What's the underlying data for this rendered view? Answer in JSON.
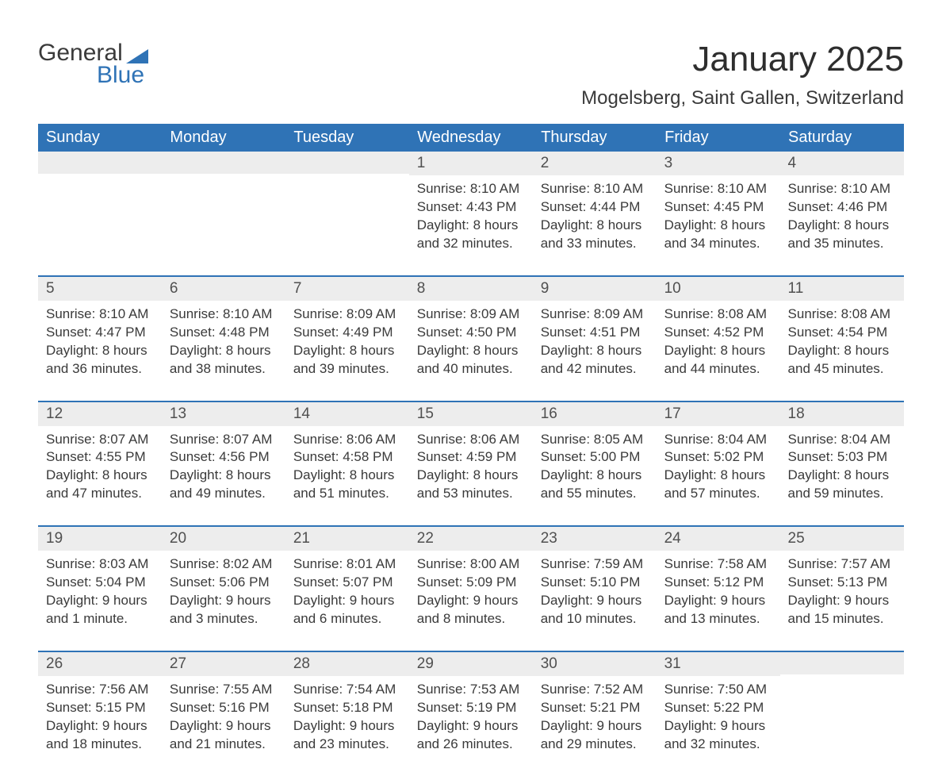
{
  "logo": {
    "word1": "General",
    "word2": "Blue"
  },
  "title": "January 2025",
  "location": "Mogelsberg, Saint Gallen, Switzerland",
  "colors": {
    "header_bg": "#2f73b6",
    "header_text": "#ffffff",
    "daynum_bg": "#ededed",
    "text": "#3a3a3a",
    "border": "#2f73b6",
    "page_bg": "#ffffff"
  },
  "fonts": {
    "family": "Arial, Helvetica, sans-serif",
    "title_size_pt": 33,
    "location_size_pt": 18,
    "header_size_pt": 15,
    "body_size_pt": 13
  },
  "weekdays": [
    "Sunday",
    "Monday",
    "Tuesday",
    "Wednesday",
    "Thursday",
    "Friday",
    "Saturday"
  ],
  "weeks": [
    [
      {
        "day": "",
        "sunrise": "",
        "sunset": "",
        "daylight": ""
      },
      {
        "day": "",
        "sunrise": "",
        "sunset": "",
        "daylight": ""
      },
      {
        "day": "",
        "sunrise": "",
        "sunset": "",
        "daylight": ""
      },
      {
        "day": "1",
        "sunrise": "Sunrise: 8:10 AM",
        "sunset": "Sunset: 4:43 PM",
        "daylight": "Daylight: 8 hours and 32 minutes."
      },
      {
        "day": "2",
        "sunrise": "Sunrise: 8:10 AM",
        "sunset": "Sunset: 4:44 PM",
        "daylight": "Daylight: 8 hours and 33 minutes."
      },
      {
        "day": "3",
        "sunrise": "Sunrise: 8:10 AM",
        "sunset": "Sunset: 4:45 PM",
        "daylight": "Daylight: 8 hours and 34 minutes."
      },
      {
        "day": "4",
        "sunrise": "Sunrise: 8:10 AM",
        "sunset": "Sunset: 4:46 PM",
        "daylight": "Daylight: 8 hours and 35 minutes."
      }
    ],
    [
      {
        "day": "5",
        "sunrise": "Sunrise: 8:10 AM",
        "sunset": "Sunset: 4:47 PM",
        "daylight": "Daylight: 8 hours and 36 minutes."
      },
      {
        "day": "6",
        "sunrise": "Sunrise: 8:10 AM",
        "sunset": "Sunset: 4:48 PM",
        "daylight": "Daylight: 8 hours and 38 minutes."
      },
      {
        "day": "7",
        "sunrise": "Sunrise: 8:09 AM",
        "sunset": "Sunset: 4:49 PM",
        "daylight": "Daylight: 8 hours and 39 minutes."
      },
      {
        "day": "8",
        "sunrise": "Sunrise: 8:09 AM",
        "sunset": "Sunset: 4:50 PM",
        "daylight": "Daylight: 8 hours and 40 minutes."
      },
      {
        "day": "9",
        "sunrise": "Sunrise: 8:09 AM",
        "sunset": "Sunset: 4:51 PM",
        "daylight": "Daylight: 8 hours and 42 minutes."
      },
      {
        "day": "10",
        "sunrise": "Sunrise: 8:08 AM",
        "sunset": "Sunset: 4:52 PM",
        "daylight": "Daylight: 8 hours and 44 minutes."
      },
      {
        "day": "11",
        "sunrise": "Sunrise: 8:08 AM",
        "sunset": "Sunset: 4:54 PM",
        "daylight": "Daylight: 8 hours and 45 minutes."
      }
    ],
    [
      {
        "day": "12",
        "sunrise": "Sunrise: 8:07 AM",
        "sunset": "Sunset: 4:55 PM",
        "daylight": "Daylight: 8 hours and 47 minutes."
      },
      {
        "day": "13",
        "sunrise": "Sunrise: 8:07 AM",
        "sunset": "Sunset: 4:56 PM",
        "daylight": "Daylight: 8 hours and 49 minutes."
      },
      {
        "day": "14",
        "sunrise": "Sunrise: 8:06 AM",
        "sunset": "Sunset: 4:58 PM",
        "daylight": "Daylight: 8 hours and 51 minutes."
      },
      {
        "day": "15",
        "sunrise": "Sunrise: 8:06 AM",
        "sunset": "Sunset: 4:59 PM",
        "daylight": "Daylight: 8 hours and 53 minutes."
      },
      {
        "day": "16",
        "sunrise": "Sunrise: 8:05 AM",
        "sunset": "Sunset: 5:00 PM",
        "daylight": "Daylight: 8 hours and 55 minutes."
      },
      {
        "day": "17",
        "sunrise": "Sunrise: 8:04 AM",
        "sunset": "Sunset: 5:02 PM",
        "daylight": "Daylight: 8 hours and 57 minutes."
      },
      {
        "day": "18",
        "sunrise": "Sunrise: 8:04 AM",
        "sunset": "Sunset: 5:03 PM",
        "daylight": "Daylight: 8 hours and 59 minutes."
      }
    ],
    [
      {
        "day": "19",
        "sunrise": "Sunrise: 8:03 AM",
        "sunset": "Sunset: 5:04 PM",
        "daylight": "Daylight: 9 hours and 1 minute."
      },
      {
        "day": "20",
        "sunrise": "Sunrise: 8:02 AM",
        "sunset": "Sunset: 5:06 PM",
        "daylight": "Daylight: 9 hours and 3 minutes."
      },
      {
        "day": "21",
        "sunrise": "Sunrise: 8:01 AM",
        "sunset": "Sunset: 5:07 PM",
        "daylight": "Daylight: 9 hours and 6 minutes."
      },
      {
        "day": "22",
        "sunrise": "Sunrise: 8:00 AM",
        "sunset": "Sunset: 5:09 PM",
        "daylight": "Daylight: 9 hours and 8 minutes."
      },
      {
        "day": "23",
        "sunrise": "Sunrise: 7:59 AM",
        "sunset": "Sunset: 5:10 PM",
        "daylight": "Daylight: 9 hours and 10 minutes."
      },
      {
        "day": "24",
        "sunrise": "Sunrise: 7:58 AM",
        "sunset": "Sunset: 5:12 PM",
        "daylight": "Daylight: 9 hours and 13 minutes."
      },
      {
        "day": "25",
        "sunrise": "Sunrise: 7:57 AM",
        "sunset": "Sunset: 5:13 PM",
        "daylight": "Daylight: 9 hours and 15 minutes."
      }
    ],
    [
      {
        "day": "26",
        "sunrise": "Sunrise: 7:56 AM",
        "sunset": "Sunset: 5:15 PM",
        "daylight": "Daylight: 9 hours and 18 minutes."
      },
      {
        "day": "27",
        "sunrise": "Sunrise: 7:55 AM",
        "sunset": "Sunset: 5:16 PM",
        "daylight": "Daylight: 9 hours and 21 minutes."
      },
      {
        "day": "28",
        "sunrise": "Sunrise: 7:54 AM",
        "sunset": "Sunset: 5:18 PM",
        "daylight": "Daylight: 9 hours and 23 minutes."
      },
      {
        "day": "29",
        "sunrise": "Sunrise: 7:53 AM",
        "sunset": "Sunset: 5:19 PM",
        "daylight": "Daylight: 9 hours and 26 minutes."
      },
      {
        "day": "30",
        "sunrise": "Sunrise: 7:52 AM",
        "sunset": "Sunset: 5:21 PM",
        "daylight": "Daylight: 9 hours and 29 minutes."
      },
      {
        "day": "31",
        "sunrise": "Sunrise: 7:50 AM",
        "sunset": "Sunset: 5:22 PM",
        "daylight": "Daylight: 9 hours and 32 minutes."
      },
      {
        "day": "",
        "sunrise": "",
        "sunset": "",
        "daylight": ""
      }
    ]
  ]
}
